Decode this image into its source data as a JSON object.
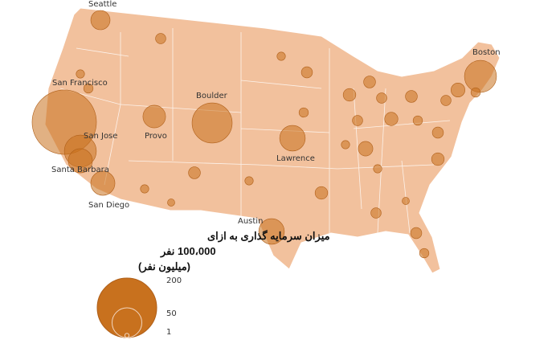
{
  "map": {
    "cities": [
      {
        "name": "Seattle",
        "value": 21
      },
      {
        "name": "San Francisco",
        "value": 234
      },
      {
        "name": "San Jose",
        "value": 58
      },
      {
        "name": "Santa Barbara",
        "value": 33
      },
      {
        "name": "San Diego",
        "value": 33
      },
      {
        "name": "Provo",
        "value": 29
      },
      {
        "name": "Boulder",
        "value": 91
      },
      {
        "name": "Lawrence",
        "value": 37
      },
      {
        "name": "Austin",
        "value": 37
      },
      {
        "name": "Boston",
        "value": 58
      }
    ],
    "other_values": [
      6,
      4,
      5,
      8,
      4,
      3,
      7,
      4,
      5,
      9,
      6,
      12,
      4,
      10,
      6,
      8,
      5,
      7,
      9,
      6,
      11,
      5,
      8,
      4,
      6,
      7,
      5,
      3,
      9,
      4
    ],
    "legend": {
      "title": [
        "میزان سرمایه گذاری به ازای",
        "100،000 نفر",
        "(میلیون نفر)"
      ],
      "sizes": [
        200,
        50,
        1
      ]
    }
  }
}
